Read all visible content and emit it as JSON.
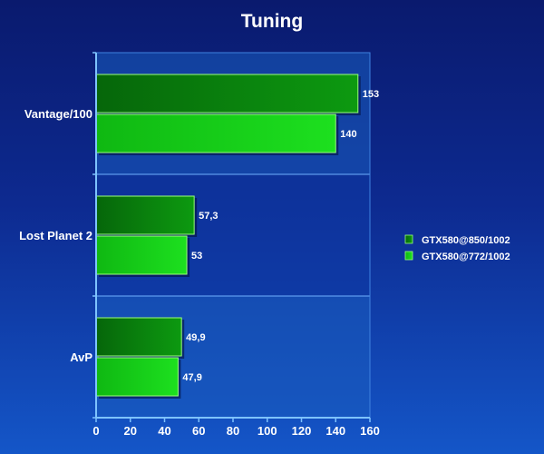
{
  "chart_data": {
    "type": "bar",
    "orientation": "horizontal",
    "title": "Tuning",
    "categories": [
      "Vantage/100",
      "Lost Planet 2",
      "AvP"
    ],
    "series": [
      {
        "name": "GTX580@850/1002",
        "values": [
          153,
          57.3,
          49.9
        ],
        "labels": [
          "153",
          "57,3",
          "49,9"
        ],
        "color": "#0a8a0a"
      },
      {
        "name": "GTX580@772/1002",
        "values": [
          140,
          53,
          47.9
        ],
        "labels": [
          "140",
          "53",
          "47,9"
        ],
        "color": "#12d012"
      }
    ],
    "xlim": [
      0,
      160
    ],
    "xticks": [
      0,
      20,
      40,
      60,
      80,
      100,
      120,
      140,
      160
    ],
    "xtick_labels": [
      "0",
      "20",
      "40",
      "60",
      "80",
      "100",
      "120",
      "140",
      "160"
    ],
    "xlabel": "",
    "ylabel": "",
    "grid": true,
    "legend_position": "right"
  }
}
